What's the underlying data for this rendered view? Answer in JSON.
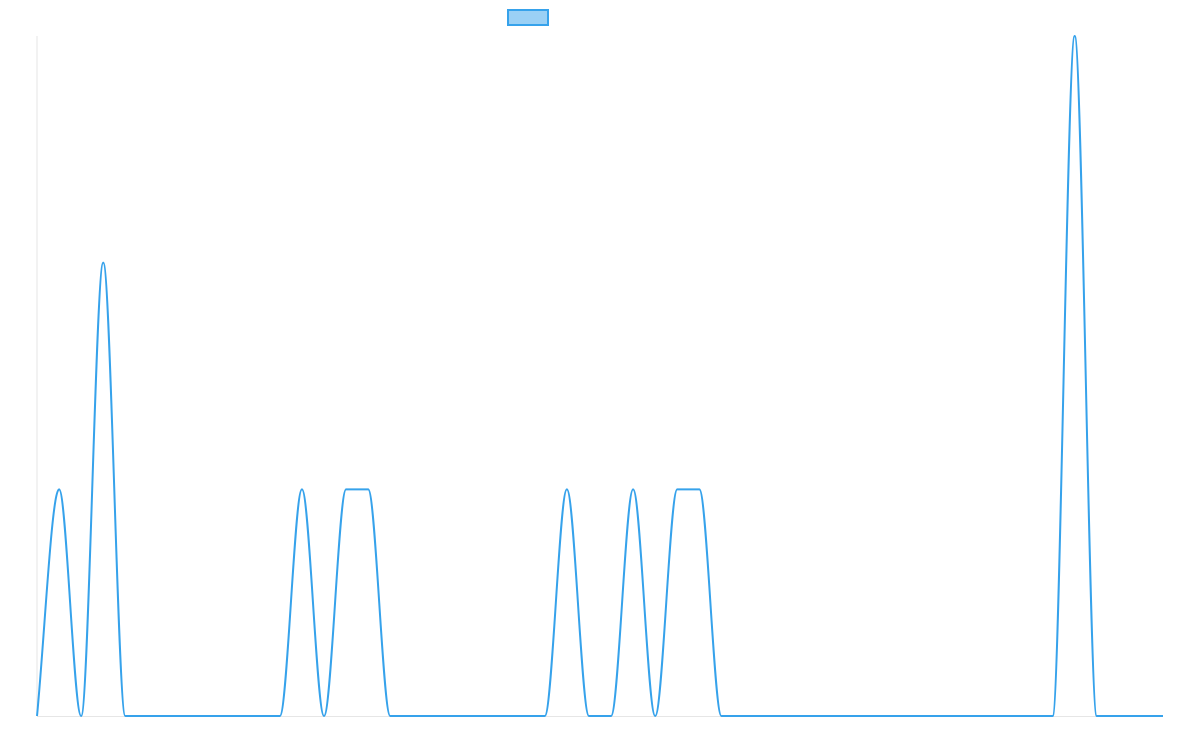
{
  "chart_data": {
    "type": "line",
    "title": "",
    "xlabel": "",
    "ylabel": "",
    "grid": false,
    "legend": {
      "position": "top-center",
      "entries": [
        {
          "label": "",
          "color": "#36a2eb"
        }
      ]
    },
    "xlim": [
      0,
      51
    ],
    "ylim": [
      0,
      3
    ],
    "smooth": true,
    "series": [
      {
        "color": "#36a2eb",
        "fill_color": "#9ad0f5",
        "x": [
          0,
          1,
          2,
          3,
          4,
          5,
          6,
          7,
          8,
          9,
          10,
          11,
          12,
          13,
          14,
          15,
          16,
          17,
          18,
          19,
          20,
          21,
          22,
          23,
          24,
          25,
          26,
          27,
          28,
          29,
          30,
          31,
          32,
          33,
          34,
          35,
          36,
          37,
          38,
          39,
          40,
          41,
          42,
          43,
          44,
          45,
          46,
          47,
          48,
          49,
          50,
          51
        ],
        "y": [
          0,
          1,
          0,
          2,
          0,
          0,
          0,
          0,
          0,
          0,
          0,
          0,
          1,
          0,
          1,
          1,
          0,
          0,
          0,
          0,
          0,
          0,
          0,
          0,
          1,
          0,
          0,
          1,
          0,
          1,
          1,
          0,
          0,
          0,
          0,
          0,
          0,
          0,
          0,
          0,
          0,
          0,
          0,
          0,
          0,
          0,
          0,
          3,
          0,
          0,
          0,
          0
        ]
      }
    ]
  }
}
